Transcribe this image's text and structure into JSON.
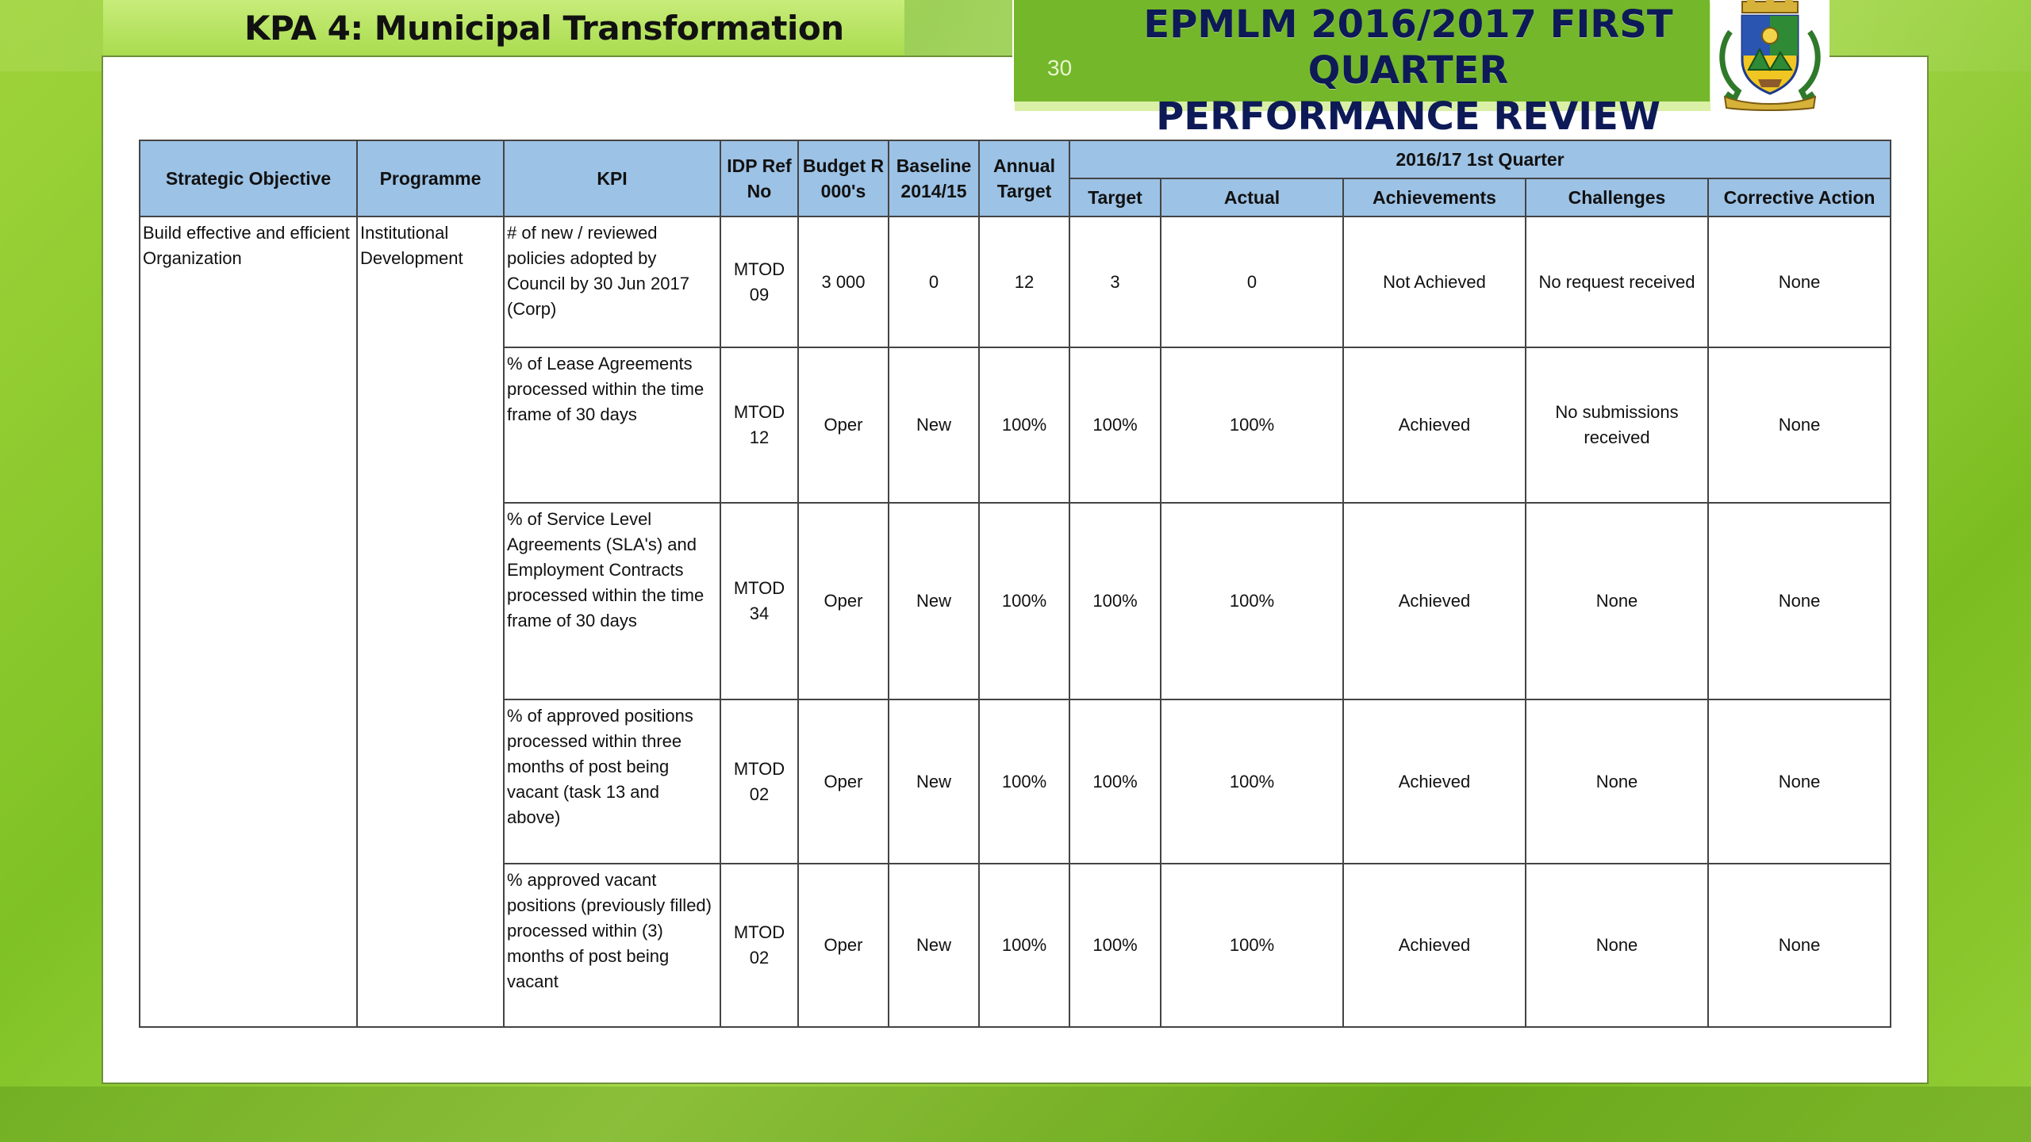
{
  "slide": {
    "kpa_title": "KPA 4: Municipal Transformation",
    "review_title_line1": "EPMLM 2016/2017 FIRST QUARTER",
    "review_title_line2": "PERFORMANCE REVIEW",
    "slide_number": "30",
    "logo_icon": "municipal-coat-of-arms-icon"
  },
  "colors": {
    "background_green": "#8cc63f",
    "title_navy": "#0d1a57",
    "header_blue": "#9cc2e5"
  },
  "table": {
    "headers": {
      "strategic_objective": "Strategic Objective",
      "programme": "Programme",
      "kpi": "KPI",
      "idp_ref": "IDP Ref No",
      "budget": "Budget R 000's",
      "baseline": "Baseline 2014/15",
      "annual_target": "Annual Target",
      "quarter_group": "2016/17 1st Quarter",
      "target": "Target",
      "actual": "Actual",
      "achievements": "Achievements",
      "challenges": "Challenges",
      "corrective_action": "Corrective Action"
    },
    "strategic_objective": "Build effective and efficient Organization",
    "programme": "Institutional Development",
    "rows": [
      {
        "kpi": "# of new / reviewed policies adopted by Council by 30 Jun 2017 (Corp)",
        "idp_ref": "MTOD 09",
        "budget": "3 000",
        "baseline": "0",
        "annual_target": "12",
        "target": "3",
        "actual": "0",
        "achievements": "Not Achieved",
        "challenges": "No request received",
        "corrective_action": "None"
      },
      {
        "kpi": "% of Lease Agreements processed within the time frame of 30 days",
        "idp_ref": "MTOD 12",
        "budget": "Oper",
        "baseline": "New",
        "annual_target": "100%",
        "target": "100%",
        "actual": "100%",
        "achievements": "Achieved",
        "challenges": "No submissions received",
        "corrective_action": "None"
      },
      {
        "kpi": "% of Service Level Agreements (SLA's) and Employment Contracts processed within the time frame of 30 days",
        "idp_ref": "MTOD 34",
        "budget": "Oper",
        "baseline": "New",
        "annual_target": "100%",
        "target": "100%",
        "actual": "100%",
        "achievements": "Achieved",
        "challenges": "None",
        "corrective_action": "None"
      },
      {
        "kpi": "% of approved positions processed within three months of post being vacant (task 13 and above)",
        "idp_ref": "MTOD 02",
        "budget": "Oper",
        "baseline": "New",
        "annual_target": "100%",
        "target": "100%",
        "actual": "100%",
        "achievements": "Achieved",
        "challenges": "None",
        "corrective_action": "None"
      },
      {
        "kpi": "% approved vacant positions (previously filled) processed within (3) months of post being vacant",
        "idp_ref": "MTOD 02",
        "budget": "Oper",
        "baseline": "New",
        "annual_target": "100%",
        "target": "100%",
        "actual": "100%",
        "achievements": "Achieved",
        "challenges": "None",
        "corrective_action": "None"
      }
    ]
  }
}
